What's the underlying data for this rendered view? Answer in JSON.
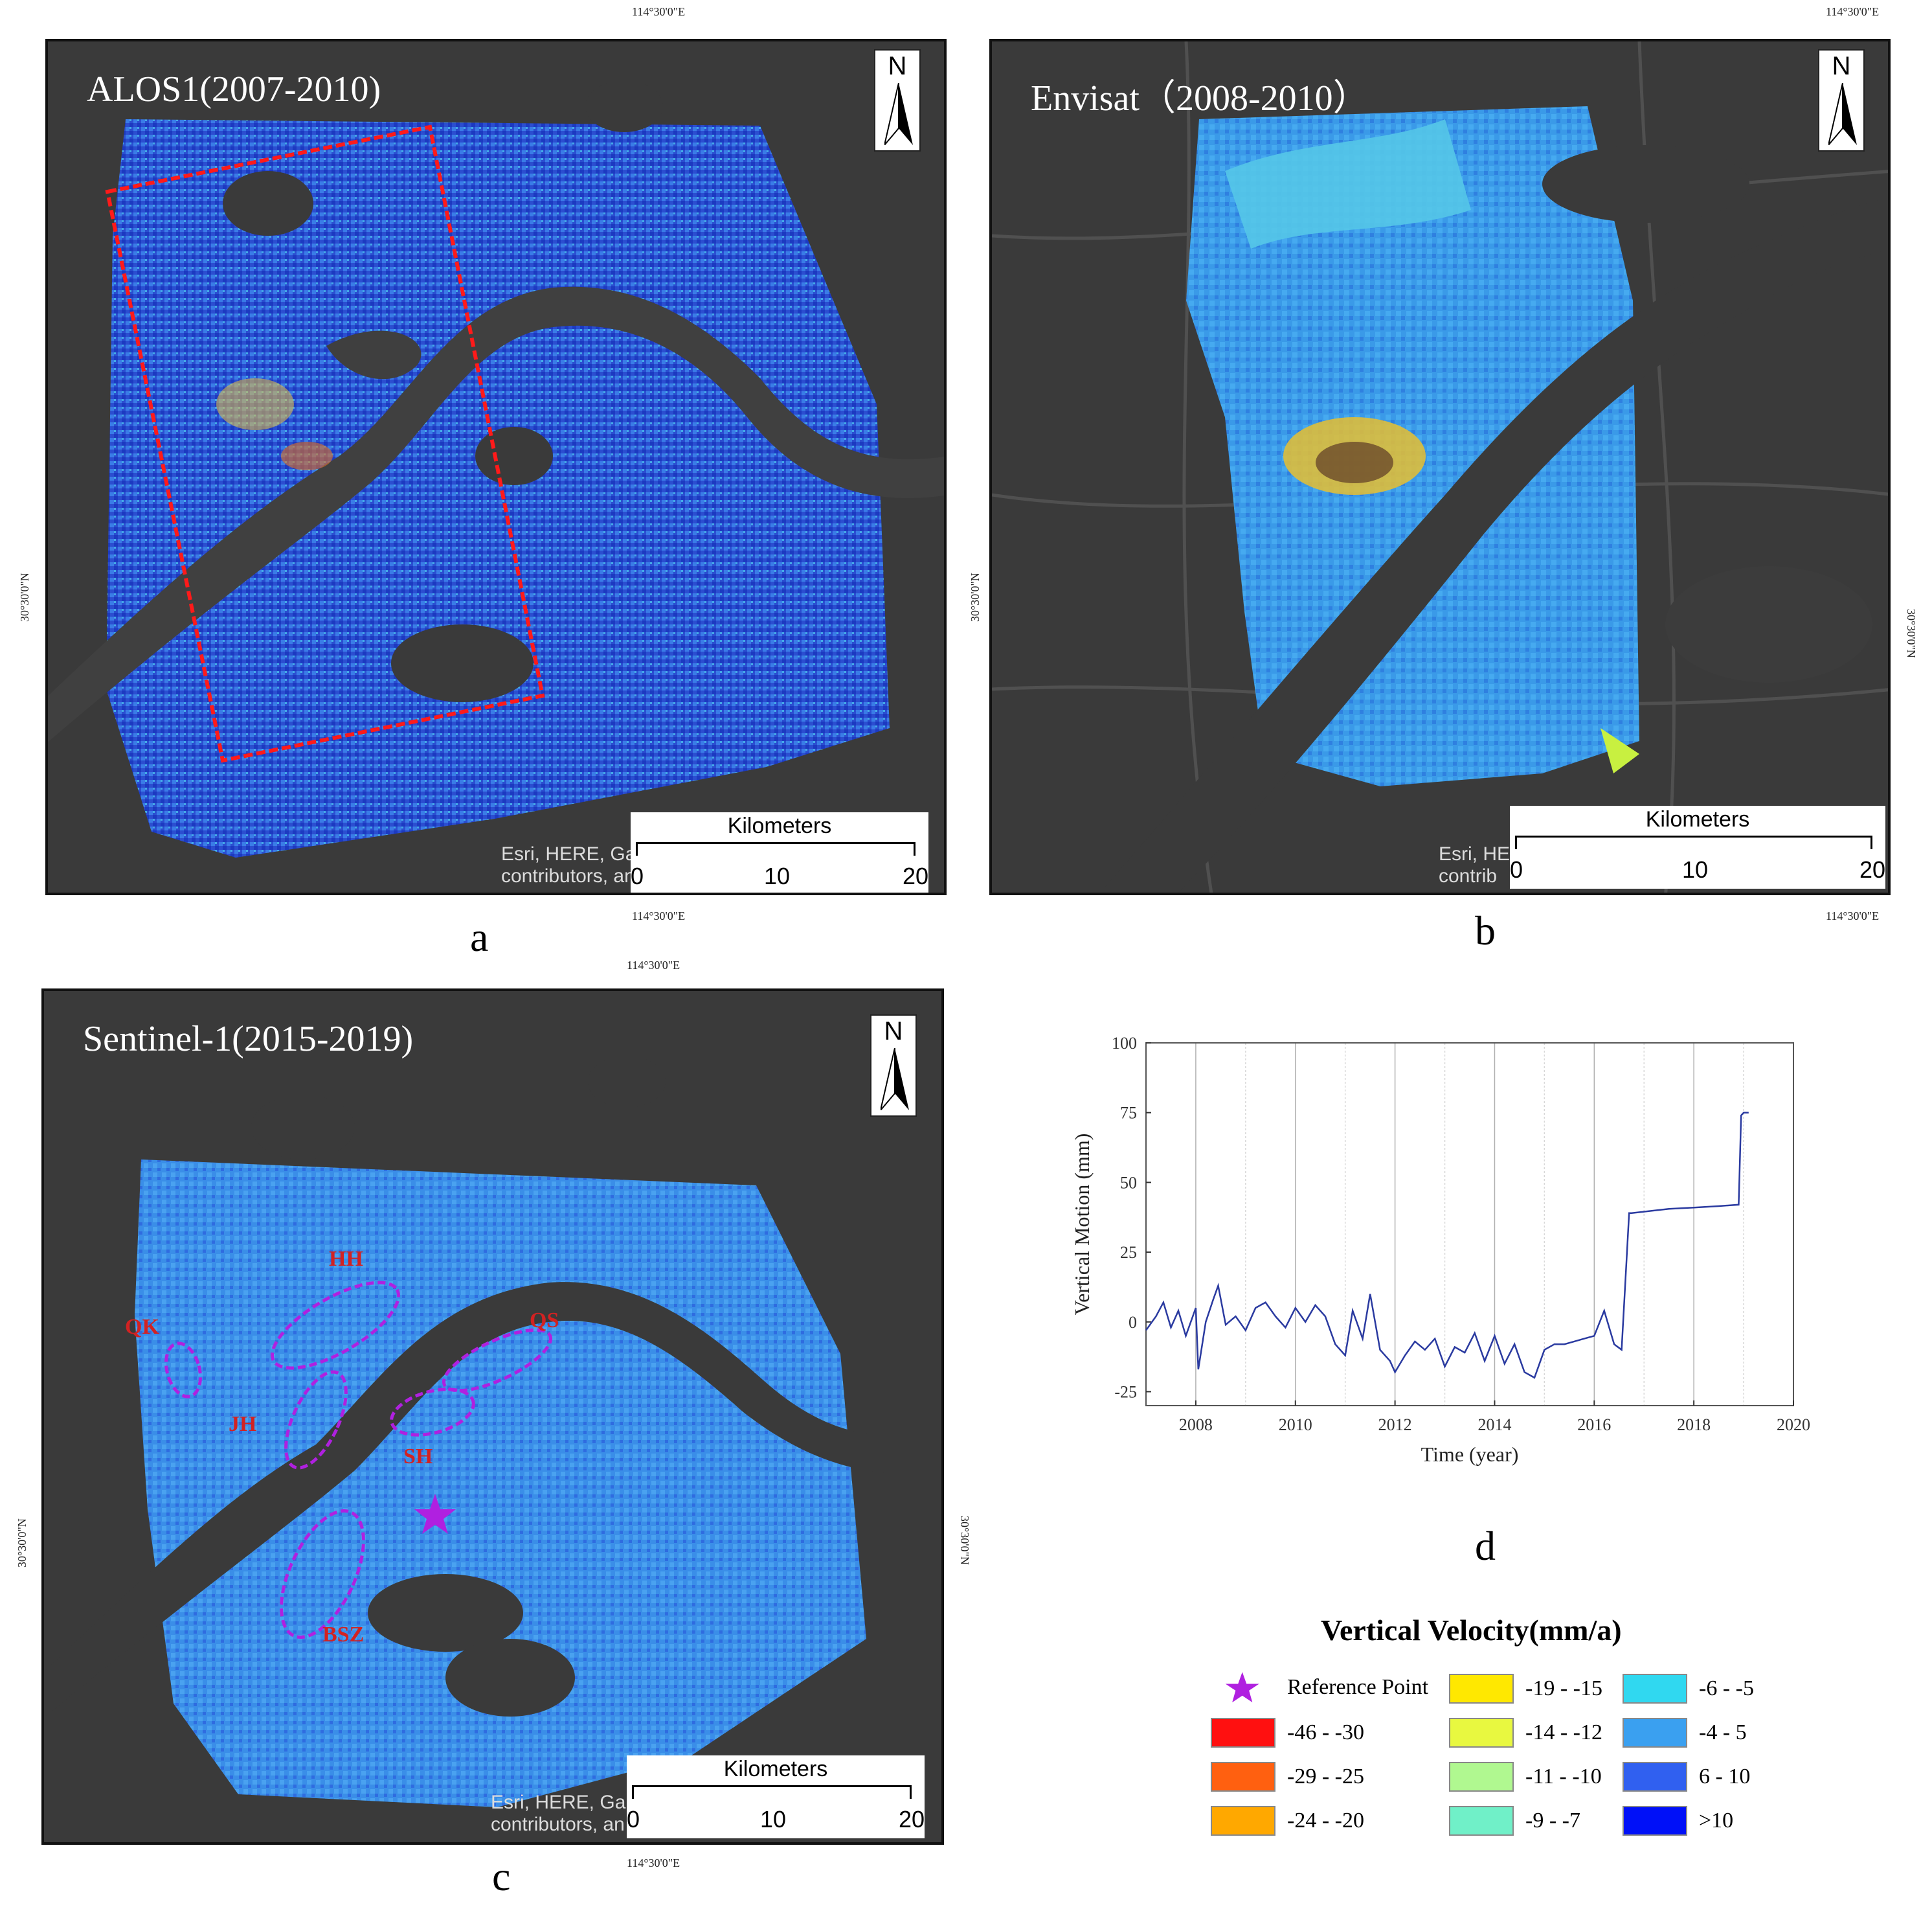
{
  "panel_a": {
    "title": "ALOS1(2007-2010)",
    "north": "N",
    "scale_title": "Kilometers",
    "scale_ticks": [
      "0",
      "10",
      "20"
    ],
    "attribution_line1": "Esri, HERE, Ga",
    "attribution_line2": "contributors, an",
    "coord_top": "114°30'0\"E",
    "coord_bottom": "114°30'0\"E",
    "coord_left": "30°30'0\"N",
    "label": "a"
  },
  "panel_b": {
    "title": "Envisat（2008-2010）",
    "north": "N",
    "scale_title": "Kilometers",
    "scale_ticks": [
      "0",
      "10",
      "20"
    ],
    "attribution_line1": "Esri, HE",
    "attribution_line2": "contrib",
    "coord_top": "114°30'0\"E",
    "coord_bottom": "114°30'0\"E",
    "coord_left": "30°30'0\"N",
    "coord_right": "30°30'0\"N",
    "label": "b"
  },
  "panel_c": {
    "title": "Sentinel-1(2015-2019)",
    "north": "N",
    "scale_title": "Kilometers",
    "scale_ticks": [
      "0",
      "10",
      "20"
    ],
    "attribution_line1": "Esri, HERE, Ga",
    "attribution_line2": "contributors, an",
    "coord_top": "114°30'0\"E",
    "coord_bottom": "114°30'0\"E",
    "coord_left": "30°30'0\"N",
    "coord_right": "30°30'0\"N",
    "label": "c",
    "zones": [
      "HH",
      "QK",
      "QS",
      "JH",
      "SH",
      "BSZ"
    ]
  },
  "panel_d": {
    "label": "d",
    "chart_data": {
      "type": "line",
      "xlabel": "Time (year)",
      "ylabel": "Vertical Motion (mm)",
      "xlim": [
        2007,
        2020
      ],
      "ylim": [
        -30,
        100
      ],
      "xticks": [
        2008,
        2010,
        2012,
        2014,
        2016,
        2018,
        2020
      ],
      "yticks": [
        -25,
        0,
        25,
        50,
        75,
        100
      ],
      "grid": "vertical",
      "series": [
        {
          "color": "#2a3aa0",
          "x": [
            2007.0,
            2007.2,
            2007.35,
            2007.5,
            2007.65,
            2007.8,
            2008.0,
            2008.05,
            2008.2,
            2008.35,
            2008.45,
            2008.6,
            2008.8,
            2009.0,
            2009.2,
            2009.4,
            2009.6,
            2009.8,
            2010.0,
            2010.2,
            2010.4,
            2010.6,
            2010.8,
            2011.0,
            2011.15,
            2011.35,
            2011.5,
            2011.7,
            2011.9,
            2012.0,
            2012.2,
            2012.4,
            2012.6,
            2012.8,
            2013.0,
            2013.2,
            2013.4,
            2013.6,
            2013.8,
            2014.0,
            2014.2,
            2014.4,
            2014.6,
            2014.8,
            2015.0,
            2015.2,
            2015.4,
            2015.6,
            2015.8,
            2016.0,
            2016.2,
            2016.4,
            2016.55,
            2016.7,
            2016.75,
            2017.0,
            2017.5,
            2018.0,
            2018.5,
            2018.9,
            2018.95,
            2019.0,
            2019.1
          ],
          "y": [
            -3,
            2,
            7,
            -2,
            4,
            -5,
            5,
            -17,
            0,
            8,
            13,
            -1,
            2,
            -3,
            5,
            7,
            2,
            -2,
            5,
            0,
            6,
            2,
            -8,
            -12,
            4,
            -6,
            10,
            -10,
            -14,
            -18,
            -12,
            -7,
            -10,
            -6,
            -16,
            -9,
            -11,
            -4,
            -14,
            -5,
            -15,
            -8,
            -18,
            -20,
            -10,
            -8,
            -8,
            -7,
            -6,
            -5,
            4,
            -8,
            -10,
            39,
            39,
            39.5,
            40.5,
            41,
            41.5,
            42,
            74,
            75,
            75
          ]
        }
      ]
    }
  },
  "legend": {
    "title": "Vertical Velocity(mm/a)",
    "reference_label": "Reference Point",
    "reference_color": "#b020e0",
    "items": [
      {
        "label": "-46 - -30",
        "color": "#ff1010"
      },
      {
        "label": "-29 - -25",
        "color": "#ff6010"
      },
      {
        "label": "-24 - -20",
        "color": "#ffa800"
      },
      {
        "label": "-19 - -15",
        "color": "#ffe800"
      },
      {
        "label": "-14 - -12",
        "color": "#e8f840"
      },
      {
        "label": "-11 - -10",
        "color": "#b0f890"
      },
      {
        "label": "-9 - -7",
        "color": "#70f0c8"
      },
      {
        "label": "-6 - -5",
        "color": "#30d8f0"
      },
      {
        "label": "-4 - 5",
        "color": "#3aa0f0"
      },
      {
        "label": "6 - 10",
        "color": "#3060f0"
      },
      {
        "label": ">10",
        "color": "#0010f8"
      }
    ]
  }
}
